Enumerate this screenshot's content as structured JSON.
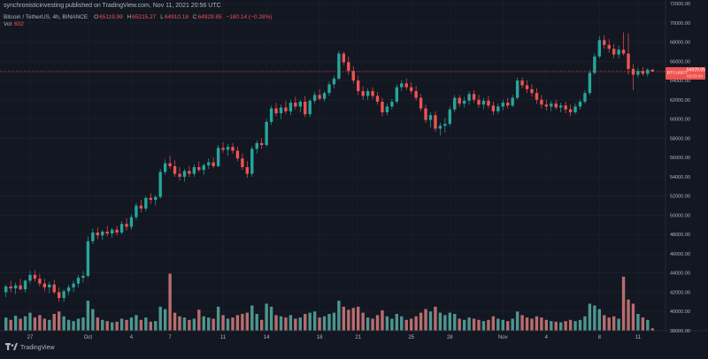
{
  "header": {
    "publisher": "synchronisticinvesting published on TradingView.com, Nov 11, 2021 20:56 UTC"
  },
  "legend": {
    "symbol": "Bitcoin / TetherUS, 4h, BINANCE",
    "open_key": "O",
    "open": "65119.99",
    "high_key": "H",
    "high": "65215.27",
    "low_key": "L",
    "low": "64910.18",
    "close_key": "C",
    "close": "64929.85",
    "change": "−180.14 (−0.28%)",
    "vol_label": "Vol",
    "vol_value": "602"
  },
  "price_badge": {
    "symbol": "BTCUSDT",
    "price": "64929.85",
    "countdown": "03:03:04"
  },
  "footer": {
    "brand": "TradingView"
  },
  "colors": {
    "background": "#131722",
    "up": "#26a69a",
    "down": "#ef5350",
    "vol_up": "#62c2b4",
    "vol_down": "#f08b87",
    "price_line": "#ef5350",
    "text": "#b2b5be"
  },
  "chart_data": {
    "type": "candlestick",
    "interval": "4h",
    "y_axis": {
      "min": 38000,
      "max": 72000,
      "step": 2000,
      "position": "right",
      "ticks": [
        "72000.00",
        "70000.00",
        "68000.00",
        "66000.00",
        "64000.00",
        "62000.00",
        "60000.00",
        "58000.00",
        "56000.00",
        "54000.00",
        "52000.00",
        "50000.00",
        "48000.00",
        "46000.00",
        "44000.00",
        "42000.00",
        "40000.00",
        "38000.00"
      ]
    },
    "x_ticks": [
      {
        "label": "27",
        "bar": 5
      },
      {
        "label": "Oct",
        "bar": 17
      },
      {
        "label": "4",
        "bar": 26
      },
      {
        "label": "7",
        "bar": 34
      },
      {
        "label": "11",
        "bar": 45
      },
      {
        "label": "14",
        "bar": 54
      },
      {
        "label": "18",
        "bar": 65
      },
      {
        "label": "21",
        "bar": 73
      },
      {
        "label": "25",
        "bar": 84
      },
      {
        "label": "28",
        "bar": 92
      },
      {
        "label": "Nov",
        "bar": 103
      },
      {
        "label": "4",
        "bar": 112
      },
      {
        "label": "8",
        "bar": 123
      },
      {
        "label": "11",
        "bar": 131
      }
    ],
    "current_price": 64929.85,
    "volume_scale_max": 140,
    "candles": [
      {
        "o": 42000,
        "h": 42800,
        "l": 41500,
        "c": 42600,
        "v": 22
      },
      {
        "o": 42600,
        "h": 43200,
        "l": 42000,
        "c": 42400,
        "v": 18
      },
      {
        "o": 42400,
        "h": 43000,
        "l": 41800,
        "c": 42700,
        "v": 25
      },
      {
        "o": 42700,
        "h": 43400,
        "l": 42200,
        "c": 42300,
        "v": 20
      },
      {
        "o": 42300,
        "h": 43300,
        "l": 42000,
        "c": 43200,
        "v": 24
      },
      {
        "o": 43200,
        "h": 44200,
        "l": 42900,
        "c": 43800,
        "v": 30
      },
      {
        "o": 43800,
        "h": 44300,
        "l": 43100,
        "c": 43400,
        "v": 22
      },
      {
        "o": 43400,
        "h": 43900,
        "l": 42600,
        "c": 42900,
        "v": 26
      },
      {
        "o": 42900,
        "h": 43400,
        "l": 42100,
        "c": 42500,
        "v": 20
      },
      {
        "o": 42500,
        "h": 43100,
        "l": 41900,
        "c": 42800,
        "v": 18
      },
      {
        "o": 42800,
        "h": 43300,
        "l": 41800,
        "c": 42000,
        "v": 28
      },
      {
        "o": 42000,
        "h": 42500,
        "l": 41000,
        "c": 41400,
        "v": 32
      },
      {
        "o": 41400,
        "h": 42300,
        "l": 41000,
        "c": 42100,
        "v": 24
      },
      {
        "o": 42100,
        "h": 42800,
        "l": 41700,
        "c": 42500,
        "v": 18
      },
      {
        "o": 42500,
        "h": 43200,
        "l": 42000,
        "c": 42900,
        "v": 16
      },
      {
        "o": 42900,
        "h": 43800,
        "l": 42500,
        "c": 43500,
        "v": 20
      },
      {
        "o": 43500,
        "h": 44200,
        "l": 43000,
        "c": 43700,
        "v": 22
      },
      {
        "o": 43700,
        "h": 47800,
        "l": 43500,
        "c": 47300,
        "v": 50
      },
      {
        "o": 47300,
        "h": 48600,
        "l": 47000,
        "c": 48200,
        "v": 36
      },
      {
        "o": 48200,
        "h": 48700,
        "l": 47500,
        "c": 47900,
        "v": 22
      },
      {
        "o": 47900,
        "h": 48500,
        "l": 47400,
        "c": 48300,
        "v": 18
      },
      {
        "o": 48300,
        "h": 48900,
        "l": 47800,
        "c": 48100,
        "v": 16
      },
      {
        "o": 48100,
        "h": 48700,
        "l": 47700,
        "c": 48500,
        "v": 14
      },
      {
        "o": 48500,
        "h": 48900,
        "l": 47900,
        "c": 48200,
        "v": 15
      },
      {
        "o": 48200,
        "h": 49400,
        "l": 48000,
        "c": 49100,
        "v": 20
      },
      {
        "o": 49100,
        "h": 49700,
        "l": 48400,
        "c": 48800,
        "v": 18
      },
      {
        "o": 48800,
        "h": 50100,
        "l": 48500,
        "c": 49800,
        "v": 22
      },
      {
        "o": 49800,
        "h": 51300,
        "l": 49500,
        "c": 51000,
        "v": 26
      },
      {
        "o": 51000,
        "h": 51600,
        "l": 50300,
        "c": 50700,
        "v": 18
      },
      {
        "o": 50700,
        "h": 52000,
        "l": 50400,
        "c": 51800,
        "v": 22
      },
      {
        "o": 51800,
        "h": 52300,
        "l": 51200,
        "c": 51600,
        "v": 15
      },
      {
        "o": 51600,
        "h": 52100,
        "l": 51000,
        "c": 51900,
        "v": 16
      },
      {
        "o": 51900,
        "h": 54800,
        "l": 51700,
        "c": 54500,
        "v": 40
      },
      {
        "o": 54500,
        "h": 55800,
        "l": 54200,
        "c": 55400,
        "v": 36
      },
      {
        "o": 55400,
        "h": 56200,
        "l": 54800,
        "c": 55100,
        "v": 95
      },
      {
        "o": 55100,
        "h": 55700,
        "l": 54000,
        "c": 54300,
        "v": 30
      },
      {
        "o": 54300,
        "h": 55000,
        "l": 53600,
        "c": 54000,
        "v": 24
      },
      {
        "o": 54000,
        "h": 54800,
        "l": 53500,
        "c": 54600,
        "v": 22
      },
      {
        "o": 54600,
        "h": 55100,
        "l": 54000,
        "c": 54300,
        "v": 18
      },
      {
        "o": 54300,
        "h": 55300,
        "l": 54000,
        "c": 55000,
        "v": 20
      },
      {
        "o": 55000,
        "h": 55600,
        "l": 54500,
        "c": 54700,
        "v": 35
      },
      {
        "o": 54700,
        "h": 55400,
        "l": 54200,
        "c": 55200,
        "v": 24
      },
      {
        "o": 55200,
        "h": 55900,
        "l": 54800,
        "c": 55500,
        "v": 22
      },
      {
        "o": 55500,
        "h": 56000,
        "l": 54900,
        "c": 55100,
        "v": 20
      },
      {
        "o": 55100,
        "h": 57300,
        "l": 55000,
        "c": 57000,
        "v": 40
      },
      {
        "o": 57000,
        "h": 57600,
        "l": 56500,
        "c": 56800,
        "v": 26
      },
      {
        "o": 56800,
        "h": 57400,
        "l": 56200,
        "c": 57100,
        "v": 20
      },
      {
        "o": 57100,
        "h": 57500,
        "l": 56400,
        "c": 56700,
        "v": 22
      },
      {
        "o": 56700,
        "h": 57100,
        "l": 55600,
        "c": 55900,
        "v": 26
      },
      {
        "o": 55900,
        "h": 56400,
        "l": 54700,
        "c": 55000,
        "v": 28
      },
      {
        "o": 55000,
        "h": 55600,
        "l": 53900,
        "c": 54300,
        "v": 30
      },
      {
        "o": 54300,
        "h": 57200,
        "l": 54000,
        "c": 56900,
        "v": 42
      },
      {
        "o": 56900,
        "h": 57800,
        "l": 56400,
        "c": 57500,
        "v": 28
      },
      {
        "o": 57500,
        "h": 58000,
        "l": 56900,
        "c": 57300,
        "v": 18
      },
      {
        "o": 57300,
        "h": 60000,
        "l": 57100,
        "c": 59700,
        "v": 45
      },
      {
        "o": 59700,
        "h": 61400,
        "l": 59400,
        "c": 61100,
        "v": 40
      },
      {
        "o": 61100,
        "h": 61700,
        "l": 60300,
        "c": 60600,
        "v": 26
      },
      {
        "o": 60600,
        "h": 61500,
        "l": 60000,
        "c": 61200,
        "v": 24
      },
      {
        "o": 61200,
        "h": 61900,
        "l": 60500,
        "c": 60800,
        "v": 22
      },
      {
        "o": 60800,
        "h": 62000,
        "l": 60400,
        "c": 61700,
        "v": 26
      },
      {
        "o": 61700,
        "h": 62300,
        "l": 61000,
        "c": 61300,
        "v": 20
      },
      {
        "o": 61300,
        "h": 62000,
        "l": 60700,
        "c": 61800,
        "v": 22
      },
      {
        "o": 61800,
        "h": 62400,
        "l": 60200,
        "c": 60500,
        "v": 28
      },
      {
        "o": 60500,
        "h": 62100,
        "l": 60200,
        "c": 61900,
        "v": 30
      },
      {
        "o": 61900,
        "h": 62800,
        "l": 61600,
        "c": 62500,
        "v": 32
      },
      {
        "o": 62500,
        "h": 63100,
        "l": 61900,
        "c": 62100,
        "v": 22
      },
      {
        "o": 62100,
        "h": 62900,
        "l": 61800,
        "c": 62700,
        "v": 24
      },
      {
        "o": 62700,
        "h": 63900,
        "l": 62400,
        "c": 63600,
        "v": 28
      },
      {
        "o": 63600,
        "h": 64500,
        "l": 63200,
        "c": 64200,
        "v": 30
      },
      {
        "o": 64200,
        "h": 67100,
        "l": 64000,
        "c": 66800,
        "v": 50
      },
      {
        "o": 66800,
        "h": 67000,
        "l": 65600,
        "c": 65900,
        "v": 40
      },
      {
        "o": 65900,
        "h": 66500,
        "l": 64600,
        "c": 65000,
        "v": 35
      },
      {
        "o": 65000,
        "h": 65500,
        "l": 63700,
        "c": 64000,
        "v": 38
      },
      {
        "o": 64000,
        "h": 64500,
        "l": 62500,
        "c": 62900,
        "v": 40
      },
      {
        "o": 62900,
        "h": 63400,
        "l": 62000,
        "c": 62400,
        "v": 30
      },
      {
        "o": 62400,
        "h": 63200,
        "l": 62000,
        "c": 62900,
        "v": 22
      },
      {
        "o": 62900,
        "h": 63300,
        "l": 62100,
        "c": 62400,
        "v": 20
      },
      {
        "o": 62400,
        "h": 62800,
        "l": 61500,
        "c": 61800,
        "v": 26
      },
      {
        "o": 61800,
        "h": 62200,
        "l": 60300,
        "c": 60700,
        "v": 34
      },
      {
        "o": 60700,
        "h": 61600,
        "l": 60400,
        "c": 61300,
        "v": 24
      },
      {
        "o": 61300,
        "h": 62100,
        "l": 61000,
        "c": 61800,
        "v": 20
      },
      {
        "o": 61800,
        "h": 63600,
        "l": 61600,
        "c": 63300,
        "v": 28
      },
      {
        "o": 63300,
        "h": 64000,
        "l": 62900,
        "c": 63700,
        "v": 24
      },
      {
        "o": 63700,
        "h": 64200,
        "l": 63000,
        "c": 63300,
        "v": 18
      },
      {
        "o": 63300,
        "h": 63800,
        "l": 62600,
        "c": 62900,
        "v": 20
      },
      {
        "o": 62900,
        "h": 63400,
        "l": 61900,
        "c": 62200,
        "v": 24
      },
      {
        "o": 62200,
        "h": 62600,
        "l": 60800,
        "c": 61100,
        "v": 30
      },
      {
        "o": 61100,
        "h": 61500,
        "l": 59600,
        "c": 59900,
        "v": 36
      },
      {
        "o": 59900,
        "h": 60700,
        "l": 59100,
        "c": 60400,
        "v": 32
      },
      {
        "o": 60400,
        "h": 60800,
        "l": 58700,
        "c": 59000,
        "v": 40
      },
      {
        "o": 59000,
        "h": 59600,
        "l": 58300,
        "c": 59300,
        "v": 30
      },
      {
        "o": 59300,
        "h": 60100,
        "l": 58600,
        "c": 59500,
        "v": 26
      },
      {
        "o": 59500,
        "h": 61300,
        "l": 59300,
        "c": 61000,
        "v": 30
      },
      {
        "o": 61000,
        "h": 62500,
        "l": 60700,
        "c": 62200,
        "v": 28
      },
      {
        "o": 62200,
        "h": 62500,
        "l": 61300,
        "c": 61600,
        "v": 20
      },
      {
        "o": 61600,
        "h": 62300,
        "l": 61200,
        "c": 61900,
        "v": 18
      },
      {
        "o": 61900,
        "h": 62900,
        "l": 61500,
        "c": 62600,
        "v": 22
      },
      {
        "o": 62600,
        "h": 63000,
        "l": 61700,
        "c": 62000,
        "v": 20
      },
      {
        "o": 62000,
        "h": 62500,
        "l": 61200,
        "c": 61500,
        "v": 18
      },
      {
        "o": 61500,
        "h": 62200,
        "l": 61000,
        "c": 61900,
        "v": 16
      },
      {
        "o": 61900,
        "h": 62400,
        "l": 61100,
        "c": 61400,
        "v": 18
      },
      {
        "o": 61400,
        "h": 61800,
        "l": 60400,
        "c": 60800,
        "v": 24
      },
      {
        "o": 60800,
        "h": 61600,
        "l": 60500,
        "c": 61300,
        "v": 20
      },
      {
        "o": 61300,
        "h": 62000,
        "l": 60900,
        "c": 61700,
        "v": 18
      },
      {
        "o": 61700,
        "h": 62200,
        "l": 61100,
        "c": 61400,
        "v": 16
      },
      {
        "o": 61400,
        "h": 62500,
        "l": 61200,
        "c": 62200,
        "v": 20
      },
      {
        "o": 62200,
        "h": 64300,
        "l": 62000,
        "c": 64000,
        "v": 32
      },
      {
        "o": 64000,
        "h": 64300,
        "l": 63200,
        "c": 63500,
        "v": 26
      },
      {
        "o": 63500,
        "h": 64000,
        "l": 62700,
        "c": 63100,
        "v": 22
      },
      {
        "o": 63100,
        "h": 63600,
        "l": 62300,
        "c": 62700,
        "v": 20
      },
      {
        "o": 62700,
        "h": 63200,
        "l": 61600,
        "c": 62000,
        "v": 24
      },
      {
        "o": 62000,
        "h": 62500,
        "l": 61100,
        "c": 61500,
        "v": 22
      },
      {
        "o": 61500,
        "h": 62000,
        "l": 60900,
        "c": 61300,
        "v": 18
      },
      {
        "o": 61300,
        "h": 61900,
        "l": 60800,
        "c": 61600,
        "v": 16
      },
      {
        "o": 61600,
        "h": 62000,
        "l": 61000,
        "c": 61200,
        "v": 15
      },
      {
        "o": 61200,
        "h": 61700,
        "l": 60700,
        "c": 61400,
        "v": 14
      },
      {
        "o": 61400,
        "h": 61800,
        "l": 60600,
        "c": 61000,
        "v": 16
      },
      {
        "o": 61000,
        "h": 61500,
        "l": 60300,
        "c": 60700,
        "v": 18
      },
      {
        "o": 60700,
        "h": 61600,
        "l": 60500,
        "c": 61300,
        "v": 16
      },
      {
        "o": 61300,
        "h": 62000,
        "l": 61000,
        "c": 61800,
        "v": 18
      },
      {
        "o": 61800,
        "h": 63000,
        "l": 61600,
        "c": 62700,
        "v": 24
      },
      {
        "o": 62700,
        "h": 65100,
        "l": 62500,
        "c": 64800,
        "v": 45
      },
      {
        "o": 64800,
        "h": 66800,
        "l": 64600,
        "c": 66500,
        "v": 42
      },
      {
        "o": 66500,
        "h": 68600,
        "l": 66300,
        "c": 68200,
        "v": 36
      },
      {
        "o": 68200,
        "h": 68700,
        "l": 67300,
        "c": 67700,
        "v": 26
      },
      {
        "o": 67700,
        "h": 68300,
        "l": 66900,
        "c": 67300,
        "v": 22
      },
      {
        "o": 67300,
        "h": 67800,
        "l": 66300,
        "c": 66700,
        "v": 24
      },
      {
        "o": 66700,
        "h": 67600,
        "l": 66300,
        "c": 67200,
        "v": 20
      },
      {
        "o": 67200,
        "h": 69000,
        "l": 66600,
        "c": 66800,
        "v": 90
      },
      {
        "o": 66800,
        "h": 68900,
        "l": 64600,
        "c": 65200,
        "v": 52
      },
      {
        "o": 65200,
        "h": 65700,
        "l": 63000,
        "c": 64600,
        "v": 45
      },
      {
        "o": 64600,
        "h": 65300,
        "l": 64300,
        "c": 65000,
        "v": 28
      },
      {
        "o": 65000,
        "h": 65400,
        "l": 64500,
        "c": 64700,
        "v": 22
      },
      {
        "o": 64700,
        "h": 65300,
        "l": 64400,
        "c": 65120,
        "v": 18
      },
      {
        "o": 65120,
        "h": 65215,
        "l": 64910,
        "c": 64930,
        "v": 4
      }
    ]
  }
}
